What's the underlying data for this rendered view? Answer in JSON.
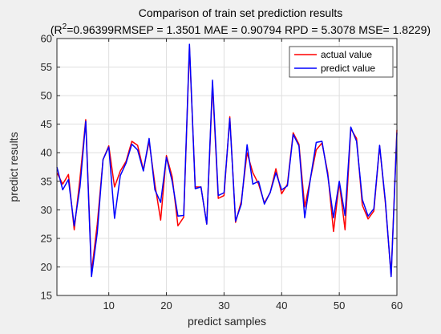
{
  "chart_data": {
    "type": "line",
    "title": "Comparison of train set prediction results",
    "subtitle": {
      "prefix": "(R",
      "sup": "2",
      "rest": "=0.96399RMSEP = 1.3501 MAE = 0.90794 RPD = 5.3078 MSE= 1.8229)"
    },
    "xlabel": "predict samples",
    "ylabel": "predict results",
    "xlim": [
      1,
      60
    ],
    "ylim": [
      15,
      60
    ],
    "xticks": [
      10,
      20,
      30,
      40,
      50,
      60
    ],
    "yticks": [
      15,
      20,
      25,
      30,
      35,
      40,
      45,
      50,
      55,
      60
    ],
    "grid": true,
    "legend_position": "top-right",
    "x": [
      1,
      2,
      3,
      4,
      5,
      6,
      7,
      8,
      9,
      10,
      11,
      12,
      13,
      14,
      15,
      16,
      17,
      18,
      19,
      20,
      21,
      22,
      23,
      24,
      25,
      26,
      27,
      28,
      29,
      30,
      31,
      32,
      33,
      34,
      35,
      36,
      37,
      38,
      39,
      40,
      41,
      42,
      43,
      44,
      45,
      46,
      47,
      48,
      49,
      50,
      51,
      52,
      53,
      54,
      55,
      56,
      57,
      58,
      59,
      60
    ],
    "series": [
      {
        "name": "actual value",
        "color": "#ff0000",
        "values": [
          36.5,
          34.5,
          36.2,
          26.5,
          35.5,
          45.8,
          19.0,
          27.5,
          38.8,
          41.2,
          34.0,
          36.8,
          38.5,
          42.0,
          41.3,
          37.0,
          42.0,
          34.5,
          28.2,
          39.5,
          35.8,
          27.2,
          28.7,
          58.5,
          34.0,
          34.0,
          27.5,
          52.0,
          32.0,
          32.5,
          46.3,
          27.8,
          31.5,
          40.0,
          36.5,
          34.5,
          31.2,
          33.0,
          37.2,
          32.8,
          34.5,
          43.5,
          41.5,
          30.5,
          35.5,
          40.5,
          41.7,
          36.5,
          26.2,
          34.8,
          26.5,
          44.2,
          42.5,
          30.8,
          28.4,
          29.8,
          41.2,
          31.2,
          18.5,
          44.0
        ]
      },
      {
        "name": "predict value",
        "color": "#0000ff",
        "values": [
          37.5,
          33.5,
          35.3,
          27.2,
          34.0,
          45.5,
          18.3,
          26.0,
          38.8,
          41.0,
          28.5,
          36.0,
          38.2,
          41.5,
          40.5,
          36.8,
          42.5,
          33.5,
          31.3,
          39.2,
          35.0,
          28.9,
          29.0,
          59.0,
          33.7,
          34.0,
          27.5,
          52.7,
          32.5,
          33.0,
          46.0,
          28.0,
          31.0,
          41.4,
          34.5,
          35.0,
          31.0,
          33.0,
          36.5,
          33.5,
          34.2,
          43.2,
          41.2,
          28.6,
          35.5,
          41.8,
          42.0,
          36.0,
          28.6,
          35.0,
          29.0,
          44.5,
          42.0,
          31.8,
          28.9,
          30.2,
          41.3,
          31.5,
          18.3,
          43.5
        ]
      }
    ]
  }
}
